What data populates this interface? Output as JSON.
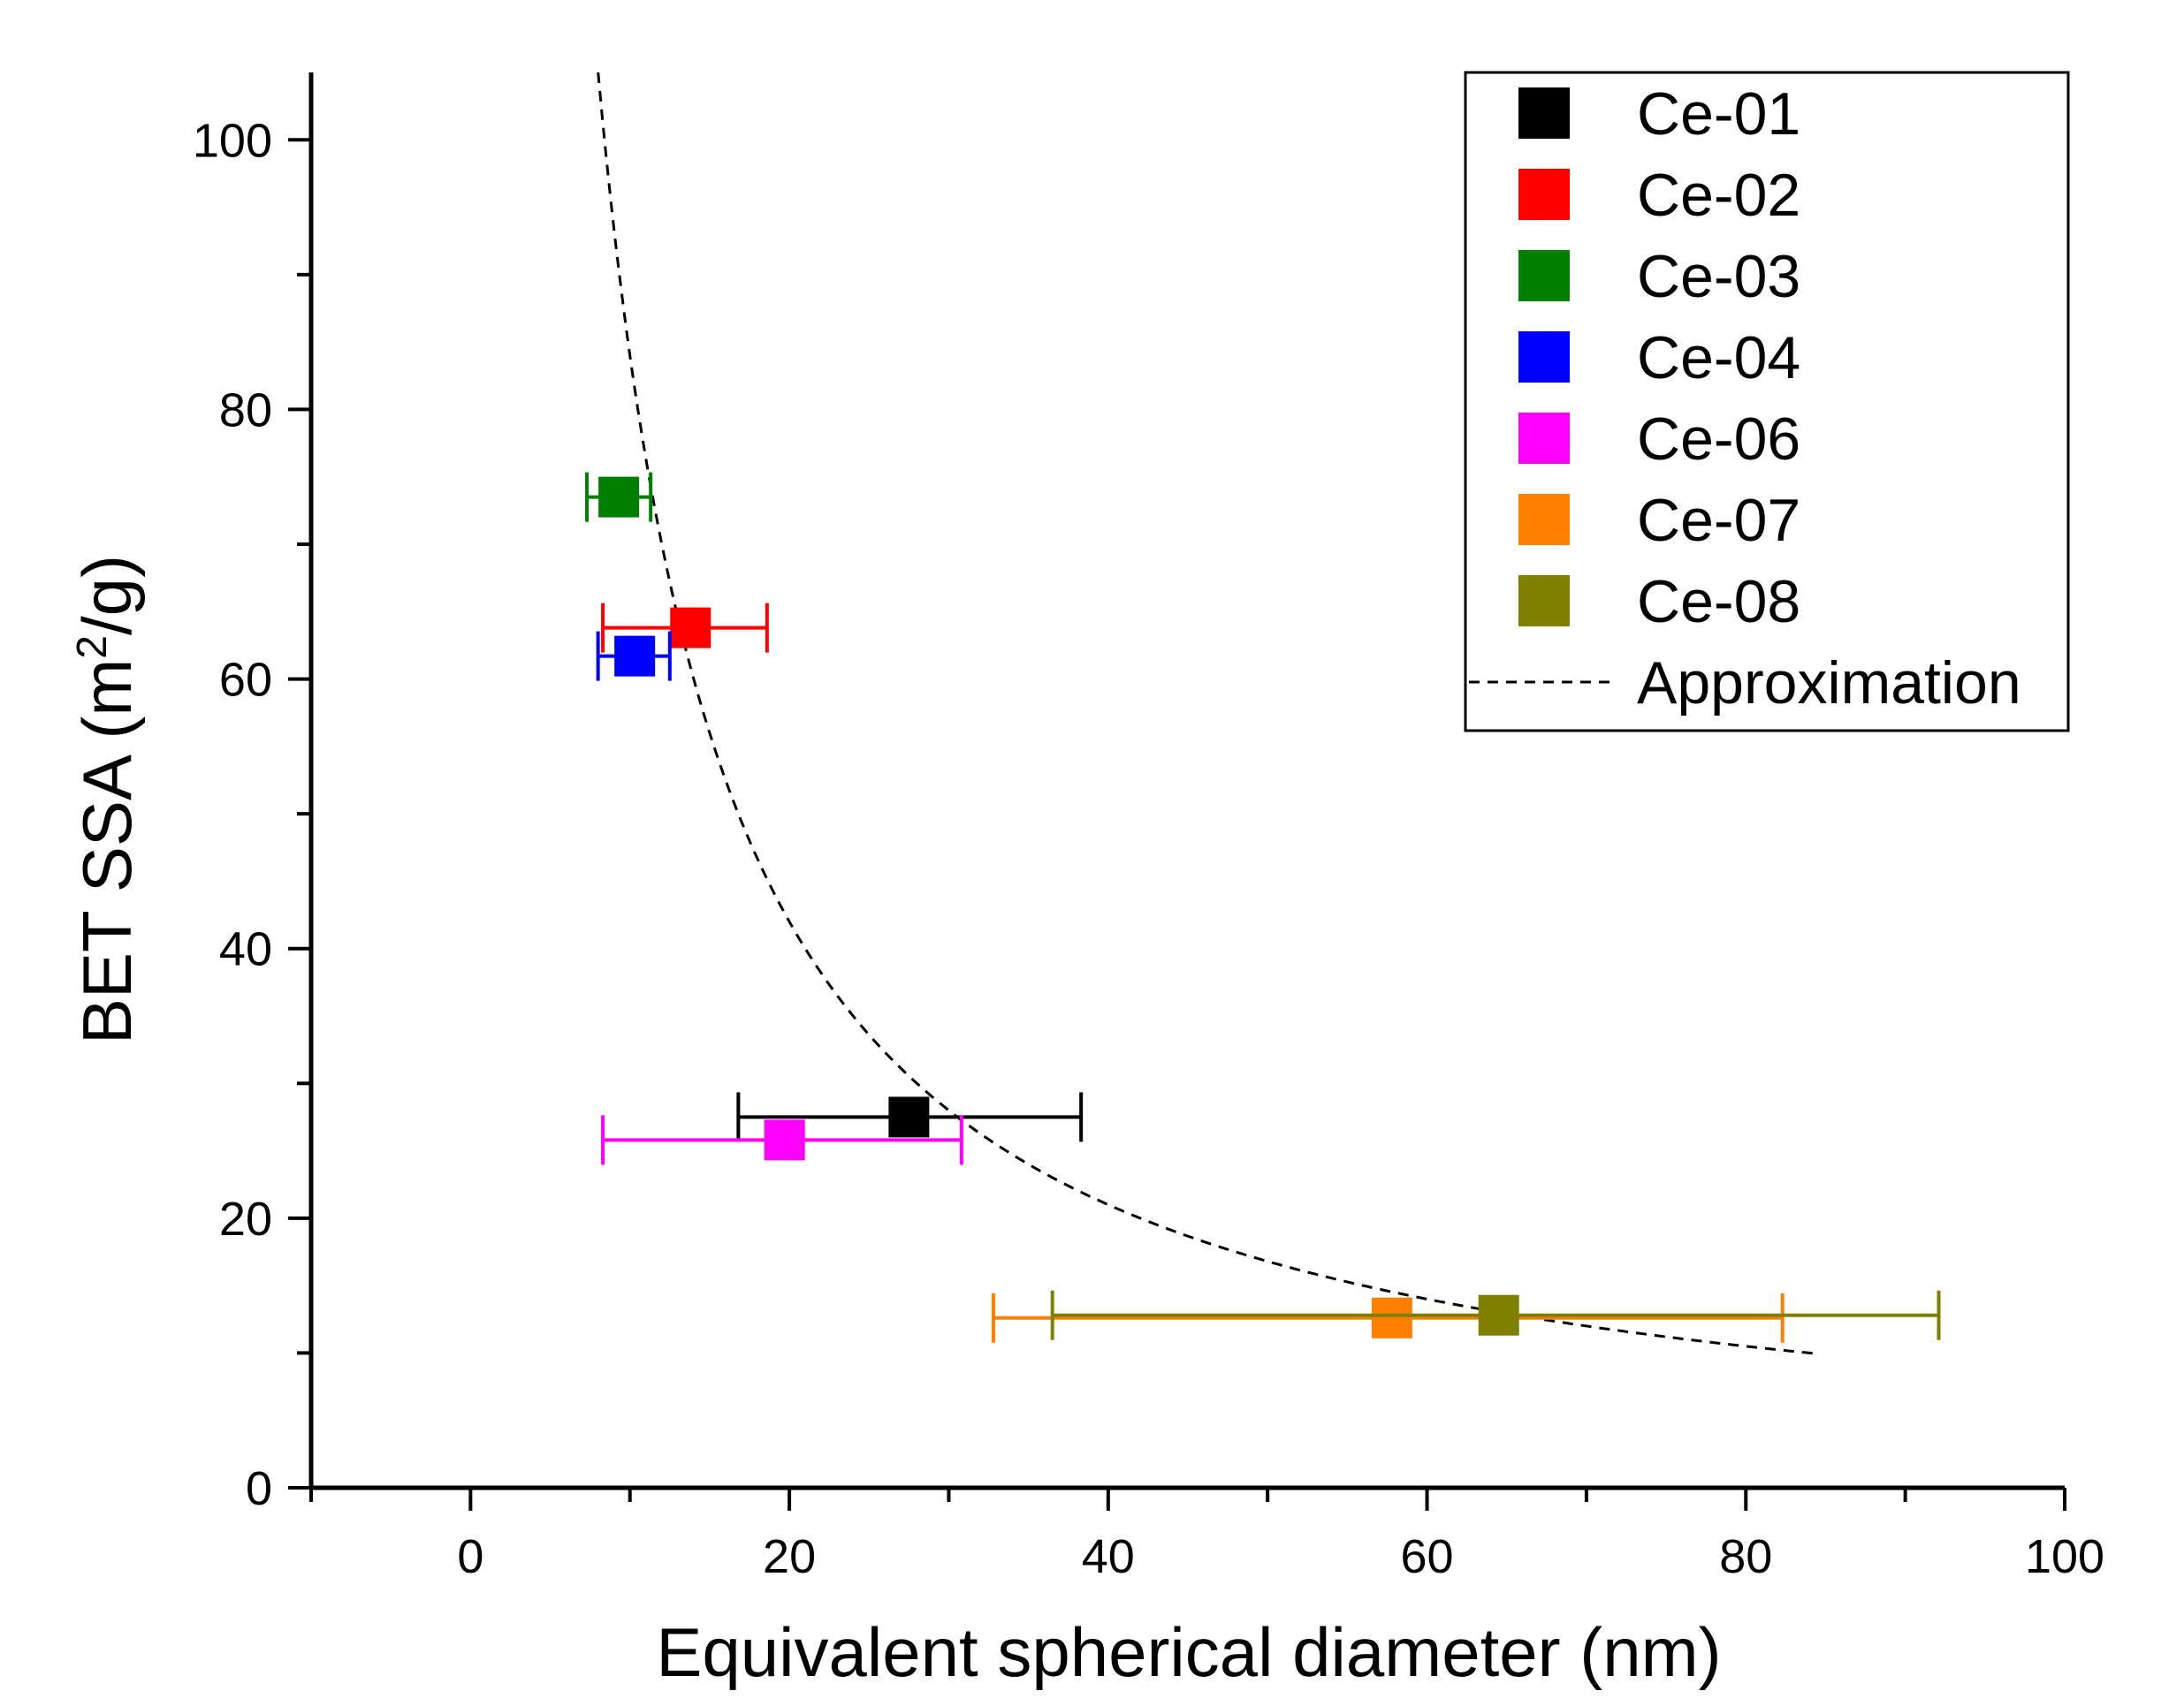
{
  "chart_data": {
    "type": "scatter",
    "title": "",
    "xlabel": "Equivalent spherical diameter (nm)",
    "ylabel_main": "BET SSA (m",
    "ylabel_sup": "2",
    "ylabel_tail": "/g)",
    "xlim": [
      -10,
      100
    ],
    "ylim": [
      0,
      105
    ],
    "x_ticks": [
      "0",
      "20",
      "40",
      "60",
      "80",
      "100"
    ],
    "y_ticks": [
      "0",
      "20",
      "40",
      "60",
      "80",
      "100"
    ],
    "legend_position": "top-right",
    "series": [
      {
        "name": "Ce-01",
        "color": "#000000",
        "x": 27.5,
        "y": 27.5,
        "xerr_low": 16.8,
        "xerr_high": 38.3
      },
      {
        "name": "Ce-02",
        "color": "#ff0000",
        "x": 13.8,
        "y": 63.8,
        "xerr_low": 8.3,
        "xerr_high": 18.6
      },
      {
        "name": "Ce-03",
        "color": "#008000",
        "x": 9.3,
        "y": 73.5,
        "xerr_low": 7.3,
        "xerr_high": 11.3
      },
      {
        "name": "Ce-04",
        "color": "#0000ff",
        "x": 10.3,
        "y": 61.7,
        "xerr_low": 8.0,
        "xerr_high": 12.5
      },
      {
        "name": "Ce-06",
        "color": "#ff00ff",
        "x": 19.7,
        "y": 25.8,
        "xerr_low": 8.3,
        "xerr_high": 30.8
      },
      {
        "name": "Ce-07",
        "color": "#ff8000",
        "x": 57.8,
        "y": 12.6,
        "xerr_low": 32.8,
        "xerr_high": 82.3
      },
      {
        "name": "Ce-08",
        "color": "#808000",
        "x": 64.5,
        "y": 12.8,
        "xerr_low": 36.5,
        "xerr_high": 92.1
      }
    ],
    "approximation": {
      "name": "Approximation",
      "style": "dashed",
      "color": "#000000",
      "formula_constant": 840,
      "x_range": [
        8,
        84.5
      ]
    }
  }
}
